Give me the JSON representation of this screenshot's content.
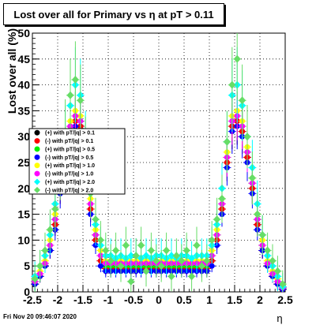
{
  "title": "Lost over all for Primary vs   η at pT > 0.11",
  "timestamp": "Fri Nov 20 09:46:07 2020",
  "chart_data": {
    "type": "scatter",
    "xlabel": "η",
    "ylabel": "Lost over all (%)",
    "xlim": [
      -2.5,
      2.5
    ],
    "ylim": [
      0,
      50
    ],
    "x_ticks": [
      "-2.5",
      "-2",
      "-1.5",
      "-1",
      "-0.5",
      "0",
      "0.5",
      "1",
      "1.5",
      "2",
      "2.5"
    ],
    "y_ticks": [
      "0",
      "5",
      "10",
      "15",
      "20",
      "25",
      "30",
      "35",
      "40",
      "45",
      "50"
    ],
    "grid": true,
    "legend_position": "left-middle",
    "x": [
      -2.45,
      -2.35,
      -2.25,
      -2.15,
      -2.05,
      -1.95,
      -1.85,
      -1.75,
      -1.65,
      -1.55,
      -1.45,
      -1.35,
      -1.25,
      -1.15,
      -1.05,
      -0.95,
      -0.85,
      -0.75,
      -0.65,
      -0.55,
      -0.45,
      -0.35,
      -0.25,
      -0.15,
      -0.05,
      0.05,
      0.15,
      0.25,
      0.35,
      0.45,
      0.55,
      0.65,
      0.75,
      0.85,
      0.95,
      1.05,
      1.15,
      1.25,
      1.35,
      1.45,
      1.55,
      1.65,
      1.75,
      1.85,
      1.95,
      2.05,
      2.15,
      2.25,
      2.35,
      2.45
    ],
    "series": [
      {
        "name": "(+) with pT/|q| > 0.1",
        "color": "#000000",
        "marker": "circle",
        "values": [
          1.5,
          3,
          5,
          8,
          13,
          20,
          26,
          31,
          33,
          32,
          25,
          16,
          10,
          6,
          4.5,
          4.5,
          4.5,
          4.5,
          4.5,
          4.5,
          4.5,
          4.5,
          4.5,
          4.5,
          4.5,
          4.5,
          4.5,
          4.5,
          4.5,
          4.5,
          4.5,
          4.5,
          4.5,
          4.5,
          4.5,
          6,
          10,
          16,
          25,
          32,
          33,
          31,
          26,
          20,
          13,
          8,
          5,
          3,
          1.5,
          0.5
        ]
      },
      {
        "name": "(-) with pT/|q| > 0.1",
        "color": "#ff0000",
        "marker": "circle",
        "values": [
          1.5,
          3,
          5,
          8,
          13,
          20,
          26,
          31,
          33,
          32,
          25,
          16,
          10,
          6,
          4.5,
          4.5,
          4.5,
          4.5,
          4.5,
          4.5,
          4.5,
          4.5,
          4.5,
          4.5,
          4.5,
          4.5,
          4.5,
          4.5,
          4.5,
          4.5,
          4.5,
          4.5,
          4.5,
          4.5,
          4.5,
          6,
          10,
          16,
          25,
          32,
          33,
          31,
          26,
          20,
          13,
          8,
          5,
          3,
          1.5,
          0.5
        ]
      },
      {
        "name": "(+) with pT/|q| > 0.5",
        "color": "#00ee00",
        "marker": "circle",
        "values": [
          2,
          3.5,
          5.5,
          9,
          14,
          21,
          27,
          32,
          34,
          33,
          26,
          17,
          11,
          7,
          5,
          5,
          5,
          5,
          5,
          5,
          5,
          5,
          5,
          5,
          5,
          5,
          5,
          5,
          5,
          5,
          5,
          5,
          5,
          5,
          5,
          7,
          11,
          17,
          26,
          33,
          34,
          32,
          27,
          21,
          14,
          9,
          5.5,
          3.5,
          2,
          0.8
        ]
      },
      {
        "name": "(-) with pT/|q| > 0.5",
        "color": "#0000ff",
        "marker": "circle",
        "values": [
          1.5,
          3,
          5,
          8,
          12,
          19,
          25,
          30,
          32,
          31,
          24,
          15,
          9,
          5,
          4,
          4,
          4,
          4,
          4,
          4,
          4,
          4,
          4,
          4,
          4,
          4,
          4,
          4,
          4,
          4,
          4,
          4,
          4,
          4,
          4,
          5,
          9,
          15,
          24,
          31,
          32,
          30,
          25,
          19,
          12,
          8,
          5,
          3,
          1.5,
          0.5
        ]
      },
      {
        "name": "(+) with pT/|q| > 1.0",
        "color": "#ffff00",
        "marker": "circle",
        "values": [
          2.5,
          4,
          6,
          10,
          15,
          22,
          28,
          33,
          35,
          34,
          27,
          18,
          12,
          8,
          6,
          6,
          6,
          6,
          6,
          6,
          6,
          6,
          6,
          6,
          6,
          6,
          6,
          6,
          6,
          6,
          6,
          6,
          6,
          6,
          6,
          8,
          12,
          18,
          27,
          34,
          35,
          33,
          28,
          22,
          15,
          10,
          6,
          4,
          2.5,
          1
        ]
      },
      {
        "name": "(-) with pT/|q| > 1.0",
        "color": "#ff00ff",
        "marker": "circle",
        "values": [
          2,
          3.5,
          5.5,
          9,
          14,
          21,
          27,
          32,
          34,
          33,
          26,
          17,
          11,
          7,
          5.5,
          5.5,
          5.5,
          5.5,
          5.5,
          5.5,
          5.5,
          5.5,
          5.5,
          5.5,
          5.5,
          5.5,
          5.5,
          5.5,
          5.5,
          5.5,
          5.5,
          5.5,
          5.5,
          5.5,
          5.5,
          7,
          11,
          17,
          26,
          33,
          34,
          32,
          27,
          21,
          14,
          9,
          5.5,
          3.5,
          2,
          0.8
        ]
      },
      {
        "name": "(+) with pT/|q| > 2.0",
        "color": "#00ffff",
        "marker": "diamond",
        "values": [
          3,
          5,
          7,
          11,
          17,
          24,
          30,
          36,
          40,
          38,
          29,
          20,
          13,
          9,
          7,
          7,
          6.5,
          7,
          6.5,
          7,
          7,
          6.5,
          7,
          6.5,
          7,
          7,
          6.5,
          7,
          6.5,
          7,
          7,
          6.5,
          7,
          7,
          7,
          9,
          13,
          20,
          29,
          38,
          40,
          36,
          30,
          24,
          17,
          11,
          7,
          5,
          3,
          1
        ]
      },
      {
        "name": "(-) with pT/|q| > 2.0",
        "color": "#66dd66",
        "marker": "diamond",
        "values": [
          2.5,
          5,
          8,
          12,
          16,
          23,
          31,
          38,
          41,
          37,
          28,
          19,
          14,
          10,
          8,
          6,
          8,
          5,
          9,
          2,
          7,
          9,
          4,
          8,
          6,
          5,
          8,
          3,
          7,
          6,
          8,
          3,
          9,
          5,
          6,
          10,
          14,
          18,
          29,
          40,
          45,
          37,
          30,
          22,
          15,
          11,
          8,
          6,
          4,
          1.5
        ]
      }
    ]
  }
}
